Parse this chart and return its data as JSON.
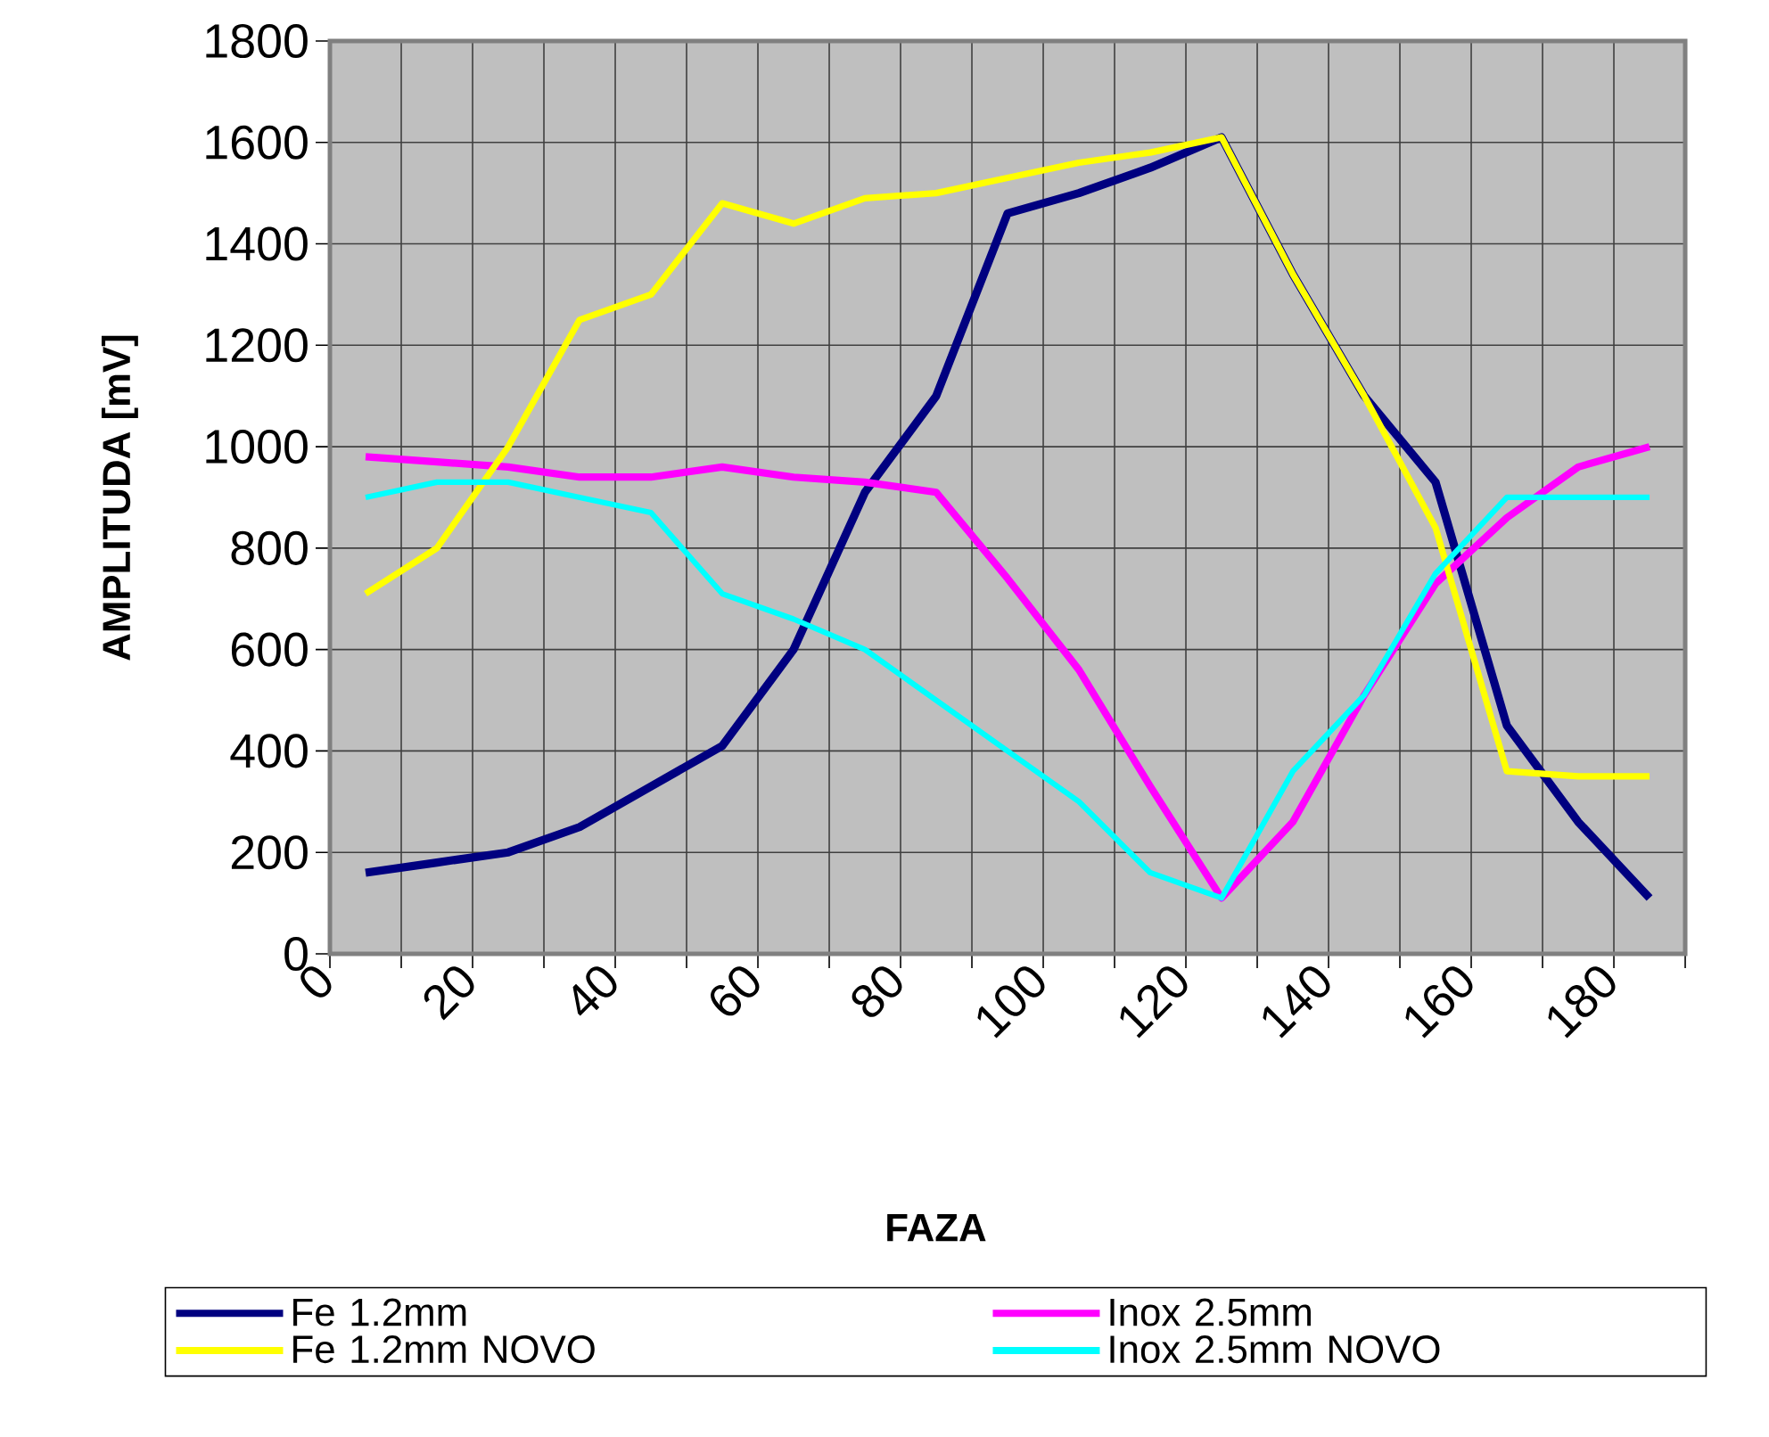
{
  "chart_data": {
    "type": "line",
    "xlabel": "FAZA",
    "ylabel": "AMPLITUDA [mV]",
    "x": [
      5,
      15,
      25,
      35,
      45,
      55,
      65,
      75,
      85,
      95,
      105,
      115,
      125,
      135,
      145,
      155,
      165,
      175,
      185
    ],
    "series": [
      {
        "name": "Fe 1.2mm",
        "color": "#000080",
        "values": [
          160,
          180,
          200,
          250,
          330,
          410,
          600,
          910,
          1100,
          1460,
          1500,
          1550,
          1610,
          1340,
          1100,
          930,
          450,
          260,
          110
        ]
      },
      {
        "name": "Inox 2.5mm",
        "color": "#ff00ff",
        "values": [
          980,
          970,
          960,
          940,
          940,
          960,
          940,
          930,
          910,
          740,
          560,
          330,
          110,
          260,
          510,
          730,
          860,
          960,
          1000
        ]
      },
      {
        "name": "Fe 1.2mm NOVO",
        "color": "#ffff00",
        "values": [
          710,
          800,
          1000,
          1250,
          1300,
          1480,
          1440,
          1490,
          1500,
          1530,
          1560,
          1580,
          1610,
          1340,
          1100,
          840,
          360,
          350,
          350
        ]
      },
      {
        "name": "Inox 2.5mm NOVO",
        "color": "#00ffff",
        "values": [
          900,
          930,
          930,
          900,
          870,
          710,
          660,
          600,
          500,
          400,
          300,
          160,
          110,
          360,
          510,
          750,
          900,
          900,
          900
        ]
      }
    ],
    "xlim": [
      0,
      190
    ],
    "xticks": [
      0,
      {
        "value": 10,
        "label": null
      },
      20,
      {
        "value": 30,
        "label": null
      },
      40,
      {
        "value": 50,
        "label": null
      },
      60,
      {
        "value": 70,
        "label": null
      },
      80,
      {
        "value": 90,
        "label": null
      },
      100,
      {
        "value": 110,
        "label": null
      },
      120,
      {
        "value": 130,
        "label": null
      },
      140,
      {
        "value": 150,
        "label": null
      },
      160,
      {
        "value": 170,
        "label": null
      },
      180,
      {
        "value": 190,
        "label": null
      }
    ],
    "ylim": [
      0,
      1800
    ],
    "yticks": [
      0,
      200,
      400,
      600,
      800,
      1000,
      1200,
      1400,
      1600,
      1800
    ],
    "grid": true,
    "legend": "bottom",
    "marker": "none",
    "line_style": "solid"
  }
}
